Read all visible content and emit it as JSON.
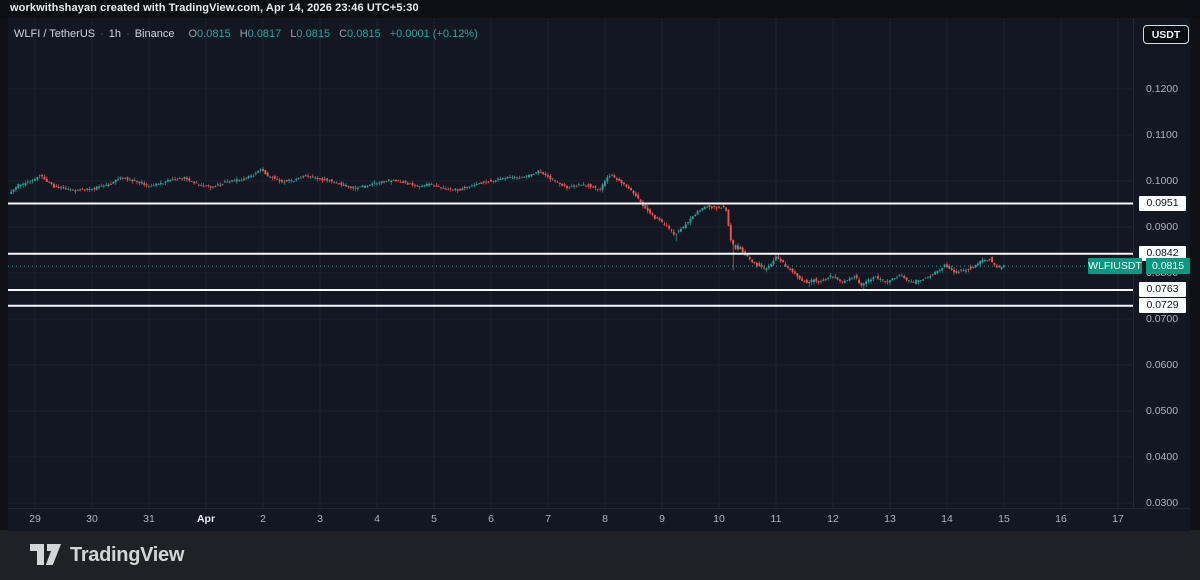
{
  "attribution": "workwithshayan created with TradingView.com, Apr 14, 2026 23:46 UTC+5:30",
  "toolbar": {
    "currency_label": "USDT"
  },
  "legend": {
    "symbol": "WLFI / TetherUS",
    "interval": "1h",
    "exchange": "Binance",
    "sep": "·",
    "o_label": "O",
    "o_value": "0.0815",
    "h_label": "H",
    "h_value": "0.0817",
    "l_label": "L",
    "l_value": "0.0815",
    "c_label": "C",
    "c_value": "0.0815",
    "change": "+0.0001 (+0.12%)"
  },
  "price_label": {
    "symbol": "WLFIUSDT",
    "price": "0.0815"
  },
  "watermark": {
    "brand": "TradingView"
  },
  "chart_data": {
    "type": "candlestick",
    "title": "WLFI / TetherUS · 1h · Binance",
    "x_ticks": [
      "29",
      "30",
      "31",
      "Apr",
      "2",
      "3",
      "4",
      "5",
      "6",
      "7",
      "8",
      "9",
      "10",
      "11",
      "12",
      "13",
      "14",
      "15",
      "16",
      "17"
    ],
    "x_range": [
      "Mar 29",
      "Apr 17"
    ],
    "y_ticks": [
      0.12,
      0.11,
      0.1,
      0.09,
      0.08,
      0.07,
      0.06,
      0.05,
      0.04,
      0.03
    ],
    "ylim": [
      0.0289,
      0.1354
    ],
    "grid": true,
    "candles_per_day": 24,
    "last_price": 0.0815,
    "last_candle_ohlc": {
      "open": 0.0815,
      "high": 0.0817,
      "low": 0.0815,
      "close": 0.0815
    },
    "levels": [
      {
        "price": 0.0951
      },
      {
        "price": 0.0842
      },
      {
        "price": 0.0763
      },
      {
        "price": 0.0729
      }
    ],
    "price_path_anchors": [
      [
        0,
        0.0972
      ],
      [
        4,
        0.099
      ],
      [
        11,
        0.1004
      ],
      [
        13,
        0.1012
      ],
      [
        19,
        0.0988
      ],
      [
        27,
        0.098
      ],
      [
        36,
        0.0983
      ],
      [
        43,
        0.0994
      ],
      [
        47,
        0.1008
      ],
      [
        53,
        0.1
      ],
      [
        59,
        0.0988
      ],
      [
        64,
        0.0994
      ],
      [
        68,
        0.1002
      ],
      [
        74,
        0.1006
      ],
      [
        80,
        0.099
      ],
      [
        86,
        0.0988
      ],
      [
        92,
        0.0998
      ],
      [
        97,
        0.1002
      ],
      [
        102,
        0.101
      ],
      [
        106,
        0.1026
      ],
      [
        109,
        0.1012
      ],
      [
        115,
        0.0998
      ],
      [
        120,
        0.1003
      ],
      [
        125,
        0.1012
      ],
      [
        130,
        0.1006
      ],
      [
        135,
        0.1
      ],
      [
        140,
        0.0992
      ],
      [
        145,
        0.0984
      ],
      [
        151,
        0.099
      ],
      [
        156,
        0.0996
      ],
      [
        162,
        0.1002
      ],
      [
        166,
        0.0998
      ],
      [
        172,
        0.0988
      ],
      [
        178,
        0.0992
      ],
      [
        183,
        0.0984
      ],
      [
        189,
        0.098
      ],
      [
        194,
        0.0988
      ],
      [
        199,
        0.0996
      ],
      [
        204,
        0.1
      ],
      [
        210,
        0.1008
      ],
      [
        215,
        0.1006
      ],
      [
        220,
        0.1014
      ],
      [
        223,
        0.1021
      ],
      [
        227,
        0.101
      ],
      [
        231,
        0.0996
      ],
      [
        235,
        0.0986
      ],
      [
        240,
        0.0992
      ],
      [
        245,
        0.0988
      ],
      [
        249,
        0.0982
      ],
      [
        252,
        0.1008
      ],
      [
        254,
        0.1012
      ],
      [
        257,
        0.1
      ],
      [
        260,
        0.0988
      ],
      [
        264,
        0.097
      ],
      [
        267,
        0.0946
      ],
      [
        270,
        0.093
      ],
      [
        274,
        0.0914
      ],
      [
        277,
        0.0902
      ],
      [
        280,
        0.0884
      ],
      [
        284,
        0.09
      ],
      [
        287,
        0.0918
      ],
      [
        291,
        0.0938
      ],
      [
        294,
        0.0946
      ],
      [
        297,
        0.0943
      ],
      [
        301,
        0.0945
      ],
      [
        302,
        0.0938
      ],
      [
        304,
        0.0872
      ],
      [
        306,
        0.0852
      ],
      [
        307,
        0.086
      ],
      [
        309,
        0.0846
      ],
      [
        311,
        0.0836
      ],
      [
        313,
        0.0824
      ],
      [
        316,
        0.0815
      ],
      [
        318,
        0.0808
      ],
      [
        321,
        0.0818
      ],
      [
        323,
        0.0836
      ],
      [
        326,
        0.082
      ],
      [
        328,
        0.081
      ],
      [
        331,
        0.0799
      ],
      [
        333,
        0.0787
      ],
      [
        336,
        0.0778
      ],
      [
        339,
        0.0786
      ],
      [
        341,
        0.0781
      ],
      [
        344,
        0.0788
      ],
      [
        346,
        0.0794
      ],
      [
        349,
        0.0786
      ],
      [
        351,
        0.0779
      ],
      [
        354,
        0.0788
      ],
      [
        356,
        0.0794
      ],
      [
        359,
        0.0772
      ],
      [
        362,
        0.0786
      ],
      [
        365,
        0.0792
      ],
      [
        367,
        0.0786
      ],
      [
        370,
        0.078
      ],
      [
        372,
        0.0788
      ],
      [
        375,
        0.0794
      ],
      [
        378,
        0.0786
      ],
      [
        381,
        0.0779
      ],
      [
        385,
        0.0788
      ],
      [
        388,
        0.0796
      ],
      [
        392,
        0.0806
      ],
      [
        394,
        0.0818
      ],
      [
        396,
        0.081
      ],
      [
        398,
        0.0801
      ],
      [
        400,
        0.0806
      ],
      [
        402,
        0.0804
      ],
      [
        404,
        0.081
      ],
      [
        406,
        0.0813
      ],
      [
        408,
        0.082
      ],
      [
        410,
        0.0826
      ],
      [
        413,
        0.0831
      ],
      [
        415,
        0.0818
      ],
      [
        417,
        0.0811
      ],
      [
        419,
        0.0815
      ]
    ],
    "wick_overrides": [
      [
        106,
        "high",
        0.1031
      ],
      [
        223,
        "high",
        0.1026
      ],
      [
        251,
        "high",
        0.1013
      ],
      [
        254,
        "high",
        0.1016
      ],
      [
        280,
        "low",
        0.0869
      ],
      [
        304,
        "low",
        0.0806
      ],
      [
        336,
        "low",
        0.0769
      ],
      [
        359,
        "low",
        0.0764
      ],
      [
        413,
        "high",
        0.0837
      ]
    ],
    "colors": {
      "up": "#26a69a",
      "down": "#ef5350",
      "level_line": "#f8f9fb",
      "price_line": "#26a69a",
      "price_label_bg": "#089981",
      "grid": "rgba(240,243,250,0.055)"
    }
  }
}
